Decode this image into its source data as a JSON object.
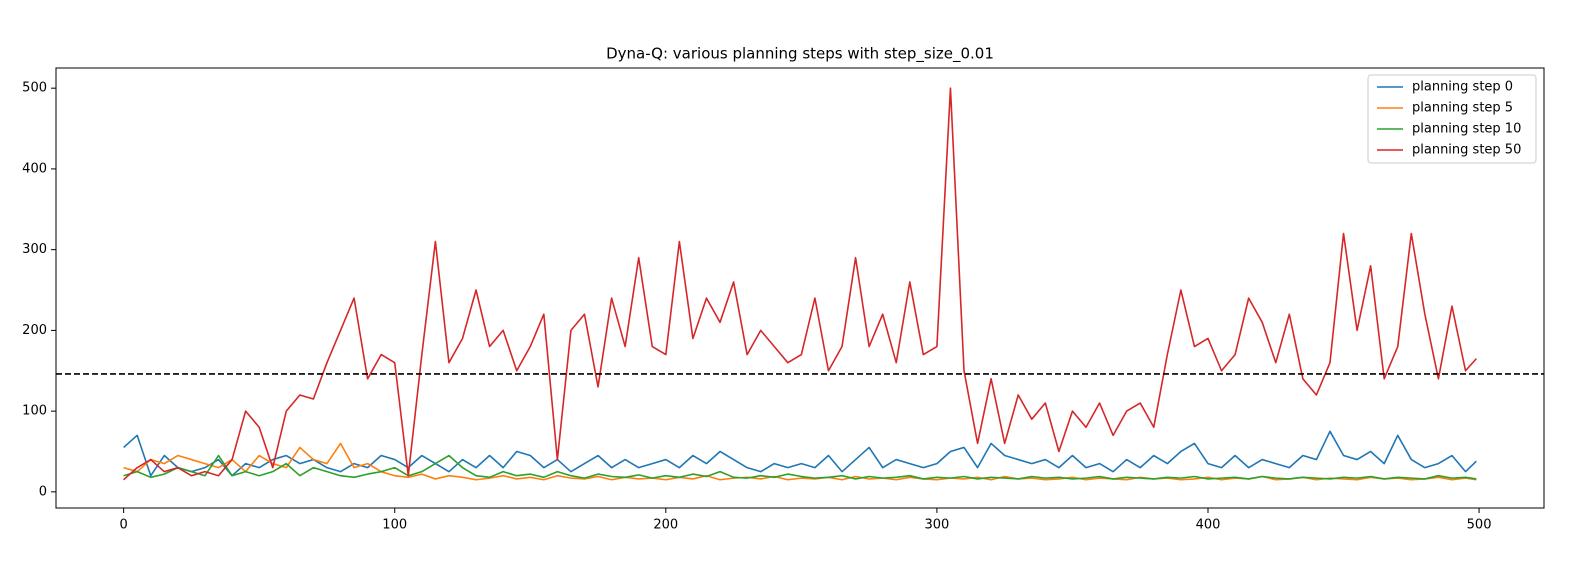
{
  "chart_data": {
    "type": "line",
    "title": "Dyna-Q: various planning steps with step_size_0.01",
    "x": [
      0,
      5,
      10,
      15,
      20,
      25,
      30,
      35,
      40,
      45,
      50,
      55,
      60,
      65,
      70,
      75,
      80,
      85,
      90,
      95,
      100,
      105,
      110,
      115,
      120,
      125,
      130,
      135,
      140,
      145,
      150,
      155,
      160,
      165,
      170,
      175,
      180,
      185,
      190,
      195,
      200,
      205,
      210,
      215,
      220,
      225,
      230,
      235,
      240,
      245,
      250,
      255,
      260,
      265,
      270,
      275,
      280,
      285,
      290,
      295,
      300,
      305,
      310,
      315,
      320,
      325,
      330,
      335,
      340,
      345,
      350,
      355,
      360,
      365,
      370,
      375,
      380,
      385,
      390,
      395,
      400,
      405,
      410,
      415,
      420,
      425,
      430,
      435,
      440,
      445,
      450,
      455,
      460,
      465,
      470,
      475,
      480,
      485,
      490,
      495,
      499
    ],
    "series": [
      {
        "name": "planning step 0",
        "color": "#1f77b4",
        "values": [
          55,
          70,
          20,
          45,
          30,
          25,
          30,
          40,
          20,
          35,
          30,
          40,
          45,
          35,
          40,
          30,
          25,
          35,
          30,
          45,
          40,
          30,
          45,
          35,
          25,
          40,
          30,
          45,
          30,
          50,
          45,
          30,
          40,
          25,
          35,
          45,
          30,
          40,
          30,
          35,
          40,
          30,
          45,
          35,
          50,
          40,
          30,
          25,
          35,
          30,
          35,
          30,
          45,
          25,
          40,
          55,
          30,
          40,
          35,
          30,
          35,
          50,
          55,
          30,
          60,
          45,
          40,
          35,
          40,
          30,
          45,
          30,
          35,
          25,
          40,
          30,
          45,
          35,
          50,
          60,
          35,
          30,
          45,
          30,
          40,
          35,
          30,
          45,
          40,
          75,
          45,
          40,
          50,
          35,
          70,
          40,
          30,
          35,
          45,
          25,
          38
        ]
      },
      {
        "name": "planning step 5",
        "color": "#ff7f0e",
        "values": [
          30,
          25,
          40,
          35,
          45,
          40,
          35,
          30,
          40,
          25,
          45,
          35,
          30,
          55,
          40,
          35,
          60,
          30,
          35,
          25,
          20,
          18,
          22,
          16,
          20,
          18,
          15,
          17,
          20,
          16,
          18,
          15,
          20,
          17,
          16,
          19,
          15,
          18,
          16,
          17,
          15,
          18,
          16,
          20,
          15,
          17,
          18,
          16,
          19,
          15,
          17,
          16,
          18,
          15,
          19,
          16,
          17,
          15,
          18,
          16,
          15,
          17,
          16,
          18,
          15,
          19,
          16,
          17,
          15,
          16,
          18,
          15,
          17,
          16,
          15,
          18,
          16,
          17,
          15,
          16,
          18,
          15,
          17,
          16,
          19,
          15,
          16,
          18,
          15,
          17,
          16,
          15,
          18,
          16,
          17,
          15,
          16,
          18,
          15,
          17,
          15
        ]
      },
      {
        "name": "planning step 10",
        "color": "#2ca02c",
        "values": [
          20,
          25,
          18,
          22,
          30,
          25,
          20,
          45,
          20,
          25,
          20,
          25,
          35,
          20,
          30,
          25,
          20,
          18,
          22,
          25,
          30,
          20,
          25,
          35,
          45,
          30,
          20,
          18,
          25,
          20,
          22,
          18,
          25,
          20,
          17,
          22,
          19,
          18,
          21,
          17,
          20,
          18,
          22,
          19,
          25,
          18,
          17,
          20,
          18,
          22,
          19,
          17,
          18,
          20,
          16,
          19,
          17,
          18,
          20,
          16,
          18,
          17,
          19,
          16,
          18,
          17,
          16,
          19,
          17,
          18,
          16,
          17,
          19,
          16,
          18,
          17,
          16,
          18,
          17,
          19,
          16,
          17,
          18,
          16,
          19,
          17,
          16,
          18,
          17,
          16,
          18,
          17,
          19,
          16,
          18,
          17,
          16,
          20,
          17,
          18,
          16
        ]
      },
      {
        "name": "planning step 50",
        "color": "#d62728",
        "values": [
          15,
          30,
          40,
          25,
          30,
          20,
          25,
          20,
          40,
          100,
          80,
          30,
          100,
          120,
          115,
          160,
          200,
          240,
          140,
          170,
          160,
          20,
          170,
          310,
          160,
          190,
          250,
          180,
          200,
          150,
          180,
          220,
          40,
          200,
          220,
          130,
          240,
          180,
          290,
          180,
          170,
          310,
          190,
          240,
          210,
          260,
          170,
          200,
          180,
          160,
          170,
          240,
          150,
          180,
          290,
          180,
          220,
          160,
          260,
          170,
          180,
          500,
          150,
          60,
          140,
          60,
          120,
          90,
          110,
          50,
          100,
          80,
          110,
          70,
          100,
          110,
          80,
          170,
          250,
          180,
          190,
          150,
          170,
          240,
          210,
          160,
          220,
          140,
          120,
          160,
          320,
          200,
          280,
          140,
          180,
          320,
          220,
          140,
          230,
          150,
          165
        ]
      }
    ],
    "hline": 146,
    "xlim": [
      -24.95,
      523.95
    ],
    "xticks": [
      0,
      100,
      200,
      300,
      400,
      500
    ],
    "ylim": [
      -20,
      525
    ],
    "yticks": [
      0,
      100,
      200,
      300,
      400,
      500
    ],
    "legend": "upper right"
  }
}
